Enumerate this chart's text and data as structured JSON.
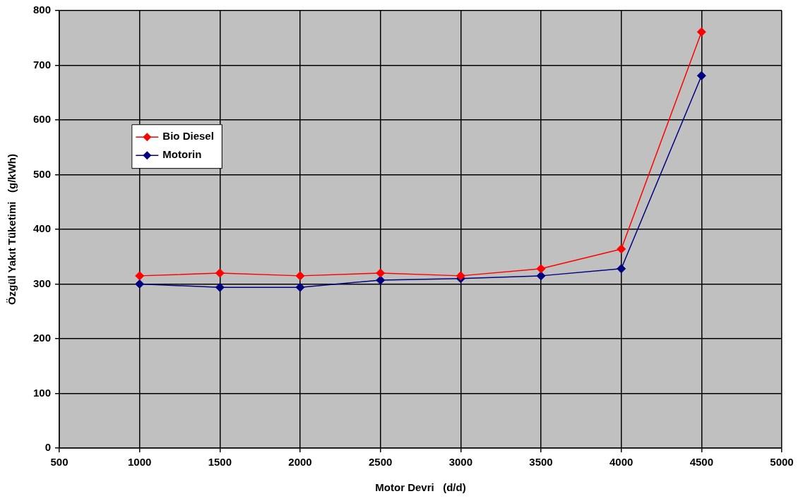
{
  "chart_data": {
    "type": "line",
    "xlabel": "Motor Devri   (d/d)",
    "ylabel": "Özgül Yakıt Tüketimi   (g/kWh)",
    "x": [
      1000,
      1500,
      2000,
      2500,
      3000,
      3500,
      4000,
      4500
    ],
    "series": [
      {
        "name": "Bio Diesel",
        "color": "#ff0000",
        "values": [
          315,
          320,
          315,
          320,
          315,
          328,
          364,
          761
        ]
      },
      {
        "name": "Motorin",
        "color": "#000080",
        "values": [
          300,
          294,
          294,
          307,
          310,
          315,
          328,
          681
        ]
      }
    ],
    "xlim": [
      500,
      5000
    ],
    "xticks": [
      500,
      1000,
      1500,
      2000,
      2500,
      3000,
      3500,
      4000,
      4500,
      5000
    ],
    "ylim": [
      0,
      800
    ],
    "yticks": [
      0,
      100,
      200,
      300,
      400,
      500,
      600,
      700,
      800
    ],
    "grid": true,
    "legend": "top left",
    "marker": "diamond",
    "line_style": "solid"
  }
}
